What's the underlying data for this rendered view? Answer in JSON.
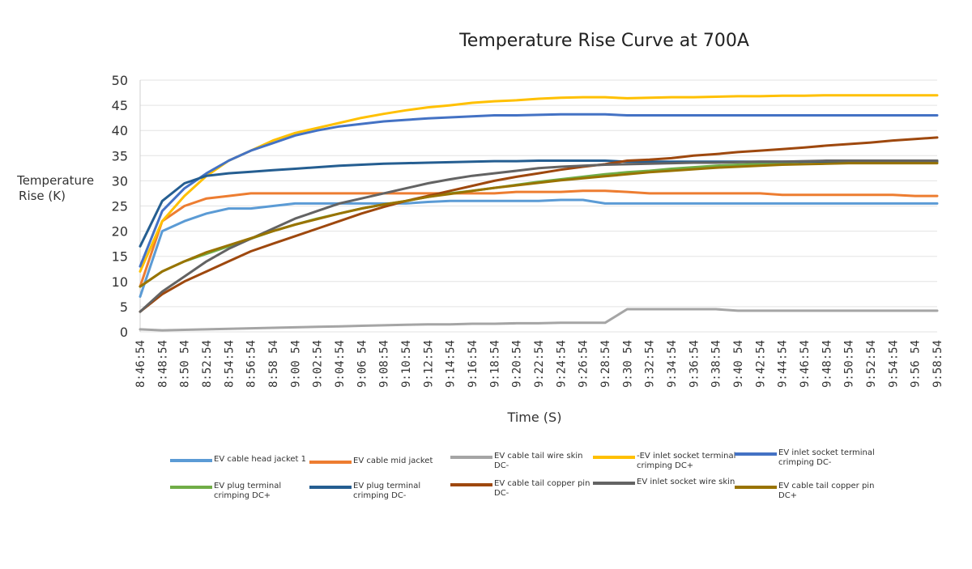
{
  "chart_data": {
    "type": "line",
    "title": "Temperature Rise Curve at 700A",
    "xlabel": "Time (S)",
    "ylabel": "Temperature Rise (K)",
    "ylim": [
      0,
      50
    ],
    "yticks": [
      0,
      5,
      10,
      15,
      20,
      25,
      30,
      35,
      40,
      45,
      50
    ],
    "grid": true,
    "legend_position": "bottom",
    "x": [
      "8:46:54",
      "8:48:54",
      "8:50:54",
      "8:52:54",
      "8:54:54",
      "8:56:54",
      "8:58:54",
      "9:00:54",
      "9:02:54",
      "9:04:54",
      "9:06:54",
      "9:08:54",
      "9:10:54",
      "9:12:54",
      "9:14:54",
      "9:16:54",
      "9:18:54",
      "9:20:54",
      "9:22:54",
      "9:24:54",
      "9:26:54",
      "9:28:54",
      "9:30:54",
      "9:32:54",
      "9:34:54",
      "9:36:54",
      "9:38:54",
      "9:40:54",
      "9:42:54",
      "9:44:54",
      "9:46:54",
      "9:48:54",
      "9:50:54",
      "9:52:54",
      "9:54:54",
      "9:56:54",
      "9:58:54"
    ],
    "xtick_labels": [
      "8:46:54",
      "8:48:54",
      "8:50 54",
      "8:52:54",
      "8:54:54",
      "8:56:54",
      "8:58 54",
      "9:00 54",
      "9:02:54",
      "9:04:54",
      "9:06 54",
      "9:08:54",
      "9:10:54",
      "9:12:54",
      "9:14:54",
      "9:16:54",
      "9:18:54",
      "9:20:54",
      "9:22:54",
      "9:24:54",
      "9:26:54",
      "9:28:54",
      "9:30 54",
      "9:32:54",
      "9:34:54",
      "9:36:54",
      "9:38:54",
      "9:40 54",
      "9:42:54",
      "9:44:54",
      "9:46:54",
      "9:48:54",
      "9:50:54",
      "9:52:54",
      "9:54:54",
      "9:56 54",
      "9:58:54"
    ],
    "series": [
      {
        "name": "EV cable head jacket 1",
        "color": "#5b9bd5",
        "values": [
          7,
          20,
          22,
          23.5,
          24.5,
          24.5,
          25,
          25.5,
          25.5,
          25.5,
          25.5,
          25.5,
          25.5,
          25.8,
          26,
          26,
          26,
          26,
          26,
          26.2,
          26.2,
          25.5,
          25.5,
          25.5,
          25.5,
          25.5,
          25.5,
          25.5,
          25.5,
          25.5,
          25.5,
          25.5,
          25.5,
          25.5,
          25.5,
          25.5,
          25.5
        ]
      },
      {
        "name": "EV cable mid jacket",
        "color": "#ed7d31",
        "values": [
          9,
          22,
          25,
          26.5,
          27,
          27.5,
          27.5,
          27.5,
          27.5,
          27.5,
          27.5,
          27.5,
          27.5,
          27.5,
          27.5,
          27.5,
          27.5,
          27.8,
          27.8,
          27.8,
          28,
          28,
          27.8,
          27.5,
          27.5,
          27.5,
          27.5,
          27.5,
          27.5,
          27.2,
          27.2,
          27.2,
          27.2,
          27.2,
          27.2,
          27,
          27
        ]
      },
      {
        "name": "EV cable tail wire skin DC-",
        "color": "#a5a5a5",
        "values": [
          0.5,
          0.3,
          0.4,
          0.5,
          0.6,
          0.7,
          0.8,
          0.9,
          1,
          1.1,
          1.2,
          1.3,
          1.4,
          1.5,
          1.5,
          1.6,
          1.6,
          1.7,
          1.7,
          1.8,
          1.8,
          1.8,
          4.5,
          4.5,
          4.5,
          4.5,
          4.5,
          4.2,
          4.2,
          4.2,
          4.2,
          4.2,
          4.2,
          4.2,
          4.2,
          4.2,
          4.2
        ]
      },
      {
        "name": "-EV inlet socket terminal crimping DC+",
        "color": "#ffc000",
        "values": [
          12,
          22,
          27,
          31,
          34,
          36,
          38,
          39.5,
          40.5,
          41.5,
          42.5,
          43.3,
          44,
          44.6,
          45,
          45.5,
          45.8,
          46,
          46.3,
          46.5,
          46.6,
          46.6,
          46.4,
          46.5,
          46.6,
          46.6,
          46.7,
          46.8,
          46.8,
          46.9,
          46.9,
          47,
          47,
          47,
          47,
          47,
          47
        ]
      },
      {
        "name": "EV inlet socket terminal crimping DC-",
        "color": "#4472c4",
        "values": [
          13,
          24,
          28.5,
          31.5,
          34,
          36,
          37.5,
          39,
          40,
          40.8,
          41.3,
          41.8,
          42.1,
          42.4,
          42.6,
          42.8,
          43,
          43,
          43.1,
          43.2,
          43.2,
          43.2,
          43,
          43,
          43,
          43,
          43,
          43,
          43,
          43,
          43,
          43,
          43,
          43,
          43,
          43,
          43
        ]
      },
      {
        "name": "EV plug terminal crimping DC+",
        "color": "#70ad47",
        "values": [
          9,
          12,
          14,
          15.5,
          17,
          18.5,
          20,
          21.3,
          22.5,
          23.5,
          24.5,
          25.3,
          26,
          26.8,
          27.5,
          28,
          28.6,
          29.2,
          29.8,
          30.3,
          30.8,
          31.3,
          31.7,
          32,
          32.4,
          32.7,
          33,
          33.2,
          33.4,
          33.6,
          33.8,
          33.9,
          34,
          34,
          34,
          34,
          34
        ]
      },
      {
        "name": "EV plug terminal crimping DC-",
        "color": "#255e91",
        "values": [
          17,
          26,
          29.5,
          31,
          31.5,
          31.8,
          32.1,
          32.4,
          32.7,
          33,
          33.2,
          33.4,
          33.5,
          33.6,
          33.7,
          33.8,
          33.9,
          33.9,
          34,
          34,
          34,
          34,
          33.8,
          33.8,
          33.8,
          33.8,
          33.8,
          33.8,
          33.8,
          33.8,
          33.8,
          33.8,
          33.8,
          33.8,
          33.8,
          33.8,
          33.8
        ]
      },
      {
        "name": "EV cable tail copper pin DC-",
        "color": "#9e480e",
        "values": [
          4,
          7.5,
          10,
          12,
          14,
          16,
          17.5,
          19,
          20.5,
          22,
          23.5,
          24.8,
          26,
          27,
          28,
          29,
          30,
          30.8,
          31.5,
          32.2,
          32.8,
          33.3,
          34,
          34.2,
          34.5,
          35,
          35.3,
          35.7,
          36,
          36.3,
          36.6,
          37,
          37.3,
          37.6,
          38,
          38.3,
          38.6
        ]
      },
      {
        "name": "EV inlet socket wire skin",
        "color": "#636363",
        "values": [
          4,
          8,
          11,
          14,
          16.5,
          18.5,
          20.5,
          22.5,
          24,
          25.5,
          26.5,
          27.5,
          28.5,
          29.5,
          30.3,
          31,
          31.5,
          32,
          32.5,
          32.8,
          33,
          33.2,
          33.3,
          33.4,
          33.5,
          33.6,
          33.6,
          33.7,
          33.8,
          33.8,
          33.9,
          34,
          34,
          34,
          34,
          34,
          34
        ]
      },
      {
        "name": "EV cable tail copper pin DC+",
        "color": "#997300",
        "values": [
          9,
          12,
          14,
          15.8,
          17.2,
          18.6,
          20,
          21.3,
          22.4,
          23.5,
          24.5,
          25.3,
          26,
          26.8,
          27.4,
          28,
          28.6,
          29.1,
          29.6,
          30.1,
          30.5,
          30.9,
          31.3,
          31.7,
          32,
          32.3,
          32.6,
          32.8,
          33,
          33.2,
          33.3,
          33.4,
          33.5,
          33.5,
          33.5,
          33.5,
          33.5
        ]
      }
    ]
  }
}
